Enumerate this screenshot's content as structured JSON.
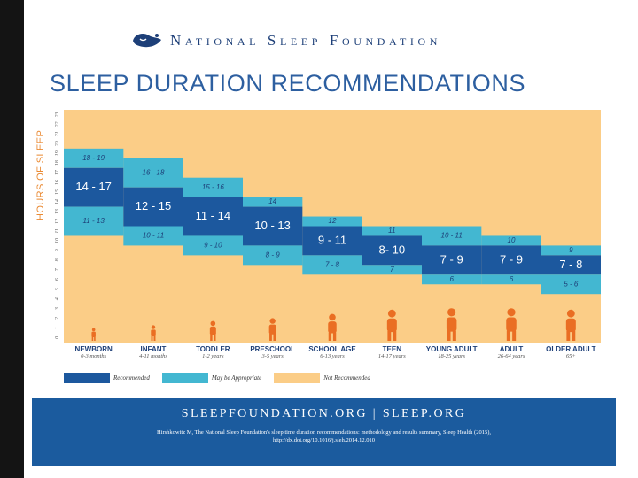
{
  "header": {
    "org_name": "National Sleep Foundation",
    "title": "SLEEP DURATION RECOMMENDATIONS"
  },
  "colors": {
    "recommended": "#1c589e",
    "may_be_appropriate": "#43b7d1",
    "not_recommended": "#fbcd87",
    "brand_blue": "#1b5b9e",
    "axis_label": "#ea8a33"
  },
  "chart_data": {
    "type": "bar",
    "title": "SLEEP DURATION RECOMMENDATIONS",
    "ylabel": "HOURS OF SLEEP",
    "ylim": [
      0,
      24
    ],
    "yticks": [
      0,
      1,
      2,
      3,
      4,
      5,
      6,
      7,
      8,
      9,
      10,
      11,
      12,
      13,
      14,
      15,
      16,
      17,
      18,
      19,
      20,
      21,
      22,
      23,
      24
    ],
    "categories": [
      {
        "name": "NEWBORN",
        "age": "0-3 months",
        "recommended": [
          14,
          17
        ],
        "rec_label": "14 - 17",
        "appropriate_low": [
          11,
          13
        ],
        "low_label": "11 - 13",
        "appropriate_high": [
          18,
          19
        ],
        "high_label": "18 - 19"
      },
      {
        "name": "INFANT",
        "age": "4-11 months",
        "recommended": [
          12,
          15
        ],
        "rec_label": "12 - 15",
        "appropriate_low": [
          10,
          11
        ],
        "low_label": "10 - 11",
        "appropriate_high": [
          16,
          18
        ],
        "high_label": "16 - 18"
      },
      {
        "name": "TODDLER",
        "age": "1-2 years",
        "recommended": [
          11,
          14
        ],
        "rec_label": "11 - 14",
        "appropriate_low": [
          9,
          10
        ],
        "low_label": "9 - 10",
        "appropriate_high": [
          15,
          16
        ],
        "high_label": "15 - 16"
      },
      {
        "name": "PRESCHOOL",
        "age": "3-5 years",
        "recommended": [
          10,
          13
        ],
        "rec_label": "10 - 13",
        "appropriate_low": [
          8,
          9
        ],
        "low_label": "8 - 9",
        "appropriate_high": [
          14,
          14
        ],
        "high_label": "14"
      },
      {
        "name": "SCHOOL AGE",
        "age": "6-13 years",
        "recommended": [
          9,
          11
        ],
        "rec_label": "9 - 11",
        "appropriate_low": [
          7,
          8
        ],
        "low_label": "7 - 8",
        "appropriate_high": [
          12,
          12
        ],
        "high_label": "12"
      },
      {
        "name": "TEEN",
        "age": "14-17 years",
        "recommended": [
          8,
          10
        ],
        "rec_label": "8- 10",
        "appropriate_low": [
          7,
          7
        ],
        "low_label": "7",
        "appropriate_high": [
          11,
          11
        ],
        "high_label": "11"
      },
      {
        "name": "YOUNG ADULT",
        "age": "18-25 years",
        "recommended": [
          7,
          9
        ],
        "rec_label": "7 - 9",
        "appropriate_low": [
          6,
          6
        ],
        "low_label": "6",
        "appropriate_high": [
          10,
          11
        ],
        "high_label": "10 - 11"
      },
      {
        "name": "ADULT",
        "age": "26-64 years",
        "recommended": [
          7,
          9
        ],
        "rec_label": "7 - 9",
        "appropriate_low": [
          6,
          6
        ],
        "low_label": "6",
        "appropriate_high": [
          10,
          10
        ],
        "high_label": "10"
      },
      {
        "name": "OLDER ADULT",
        "age": "65+",
        "recommended": [
          7,
          8
        ],
        "rec_label": "7 - 8",
        "appropriate_low": [
          5,
          6
        ],
        "low_label": "5 - 6",
        "appropriate_high": [
          9,
          9
        ],
        "high_label": "9"
      }
    ],
    "legend": [
      "Recommended",
      "May be Appropriate",
      "Not Recommended"
    ]
  },
  "footer": {
    "urls": "SLEEPFOUNDATION.ORG | SLEEP.ORG",
    "citation_line1": "Hirshkowitz M, The National Sleep Foundation's sleep time duration recommendations: methodology and results summary, Sleep Health (2015),",
    "citation_line2": "http://dx.doi.org/10.1016/j.sleh.2014.12.010"
  }
}
